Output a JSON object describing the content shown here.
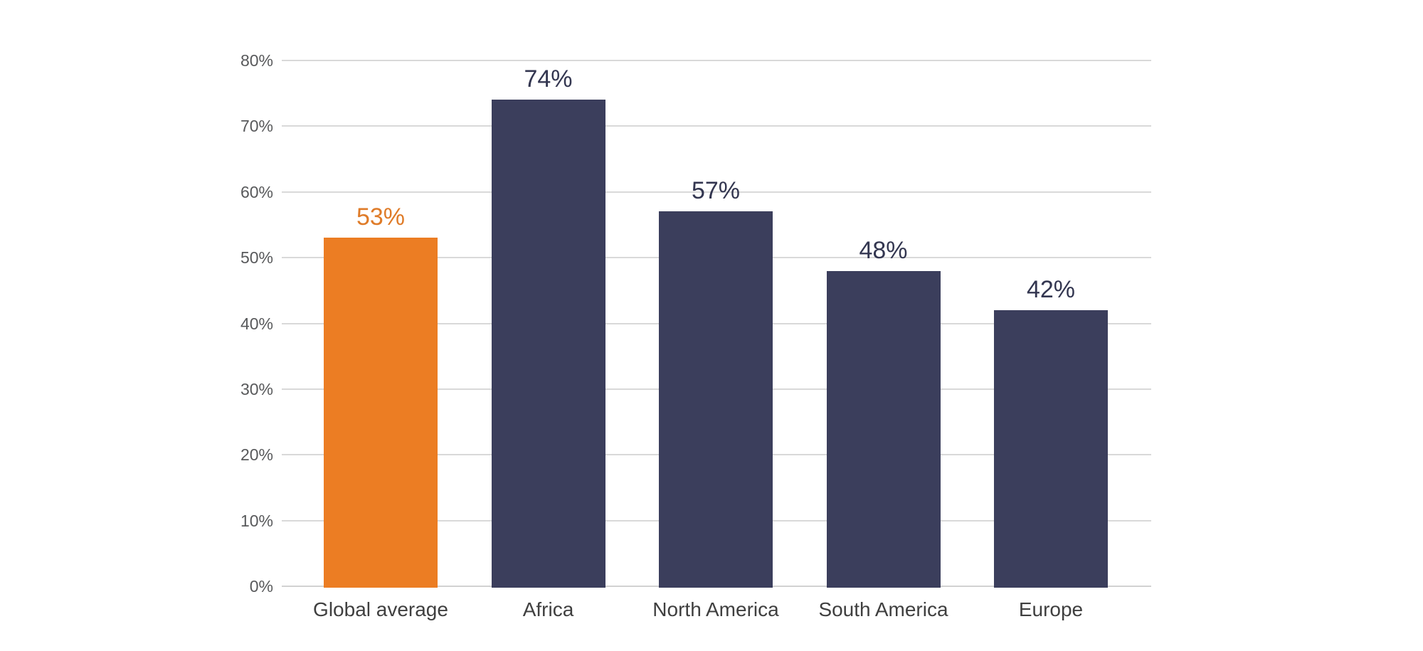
{
  "page": {
    "background": "#FFFFFF"
  },
  "chart_data": {
    "type": "bar",
    "title": "",
    "xlabel": "",
    "ylabel": "",
    "categories": [
      "Global average",
      "Africa",
      "North America",
      "South America",
      "Europe"
    ],
    "values": [
      53,
      74,
      57,
      48,
      42
    ],
    "data_labels": [
      "53%",
      "74%",
      "57%",
      "48%",
      "42%"
    ],
    "bar_colors": [
      "#EC7D23",
      "#3B3E5C",
      "#3B3E5C",
      "#3B3E5C",
      "#3B3E5C"
    ],
    "data_label_colors": [
      "#DF7B28",
      "#333650",
      "#333650",
      "#333650",
      "#333650"
    ],
    "highlighted_category": "Global average",
    "accent_orange": "#EC7D23",
    "navy": "#3B3E5C",
    "ylim": [
      0,
      80
    ],
    "ytick_step": 10,
    "ytick_labels": [
      "0%",
      "10%",
      "20%",
      "30%",
      "40%",
      "50%",
      "60%",
      "70%",
      "80%"
    ],
    "grid": true,
    "gridline_color": "#D9D9D9",
    "axis_line_color": "#D2D2D2",
    "ytick_label_color": "#58595B",
    "category_label_color": "#3F3F3F",
    "legend": false
  }
}
